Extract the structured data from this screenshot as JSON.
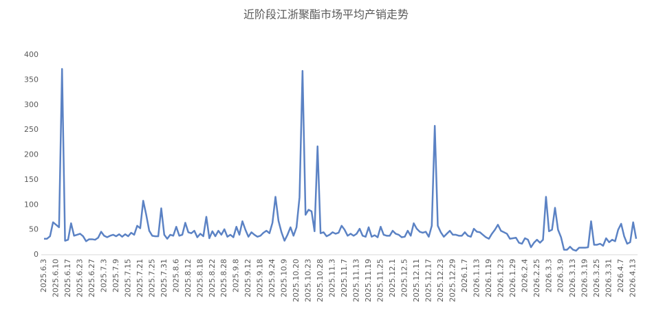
{
  "chart_data": {
    "type": "line",
    "title": "近阶段江浙聚酯市场平均产销走势",
    "categories": [
      "2025.6.3",
      null,
      null,
      null,
      "2025.6.10",
      null,
      null,
      null,
      "2025.6.17",
      null,
      null,
      null,
      "2025.6.23",
      null,
      null,
      null,
      "2025.6.27",
      null,
      null,
      null,
      "2025.7.3",
      null,
      null,
      null,
      "2025.7.9",
      null,
      null,
      null,
      "2025.7.15",
      null,
      null,
      null,
      "2025.7.21",
      null,
      null,
      null,
      "2025.7.25",
      null,
      null,
      null,
      "2025.7.31",
      null,
      null,
      null,
      "2025.8.6",
      null,
      null,
      null,
      "2025.8.12",
      null,
      null,
      null,
      "2025.8.18",
      null,
      null,
      null,
      "2025.8.22",
      null,
      null,
      null,
      "2025.8.28",
      null,
      null,
      null,
      "2025.9.8",
      null,
      null,
      null,
      "2025.9.12",
      null,
      null,
      null,
      "2025.9.18",
      null,
      null,
      null,
      "2025.9.24",
      null,
      null,
      null,
      "2025.10.9",
      null,
      null,
      null,
      "2025.10.20",
      null,
      null,
      null,
      "2025.10.23",
      null,
      null,
      null,
      "2025.10.28",
      null,
      null,
      null,
      "2025.11.3",
      null,
      null,
      null,
      "2025.11.7",
      null,
      null,
      null,
      "2025.11.13",
      null,
      null,
      null,
      "2025.11.19",
      null,
      null,
      null,
      "2025.11.25",
      null,
      null,
      null,
      "2025.12.1",
      null,
      null,
      null,
      "2025.12.5",
      null,
      null,
      null,
      "2025.12.11",
      null,
      null,
      null,
      "2025.12.17",
      null,
      null,
      null,
      "2025.12.23",
      null,
      null,
      null,
      "2025.12.29",
      null,
      null,
      null,
      "2026.1.7",
      null,
      null,
      null,
      "2026.1.13",
      null,
      null,
      null,
      "2026.1.19",
      null,
      null,
      null,
      "2026.1.23",
      null,
      null,
      null,
      "2026.1.29",
      null,
      null,
      null,
      "2026.2.4",
      null,
      null,
      null,
      "2026.2.25",
      null,
      null,
      null,
      "2026.3.3",
      null,
      null,
      null,
      "2026.3.9",
      null,
      null,
      null,
      "2026.3.13",
      null,
      null,
      null,
      "2026.3.19",
      null,
      null,
      null,
      "2026.3.25",
      null,
      null,
      null,
      "2026.3.31",
      null,
      null,
      null,
      "2026.4.7",
      null,
      null,
      null,
      "2026.4.13",
      null
    ],
    "series": [
      {
        "color": "#5b82c4",
        "values": [
          32,
          32,
          37,
          65,
          60,
          55,
          372,
          28,
          30,
          63,
          38,
          40,
          42,
          37,
          27,
          31,
          31,
          30,
          34,
          46,
          38,
          35,
          38,
          40,
          37,
          41,
          36,
          41,
          37,
          44,
          40,
          58,
          53,
          108,
          80,
          48,
          38,
          37,
          37,
          93,
          40,
          32,
          40,
          38,
          56,
          38,
          40,
          64,
          45,
          43,
          48,
          35,
          42,
          37,
          76,
          33,
          47,
          37,
          48,
          40,
          51,
          36,
          40,
          35,
          56,
          40,
          67,
          50,
          36,
          45,
          40,
          36,
          38,
          44,
          48,
          43,
          64,
          116,
          68,
          45,
          28,
          40,
          55,
          38,
          55,
          115,
          368,
          80,
          90,
          87,
          47,
          217,
          43,
          45,
          37,
          40,
          45,
          42,
          44,
          58,
          50,
          38,
          42,
          38,
          42,
          52,
          38,
          36,
          55,
          36,
          39,
          35,
          56,
          40,
          38,
          38,
          48,
          42,
          40,
          35,
          36,
          48,
          38,
          63,
          52,
          46,
          44,
          46,
          36,
          58,
          258,
          58,
          45,
          36,
          42,
          48,
          40,
          40,
          38,
          38,
          45,
          38,
          36,
          52,
          46,
          45,
          40,
          35,
          32,
          42,
          50,
          60,
          48,
          45,
          42,
          32,
          33,
          34,
          24,
          22,
          33,
          30,
          15,
          24,
          30,
          24,
          30,
          116,
          47,
          50,
          94,
          50,
          35,
          10,
          10,
          16,
          10,
          8,
          14,
          14,
          14,
          15,
          67,
          20,
          20,
          22,
          18,
          33,
          25,
          30,
          27,
          50,
          62,
          37,
          22,
          25,
          65,
          32
        ]
      }
    ],
    "ylim": [
      0,
      400
    ],
    "yticks": [
      0,
      50,
      100,
      150,
      200,
      250,
      300,
      350,
      400
    ],
    "grid": false
  }
}
